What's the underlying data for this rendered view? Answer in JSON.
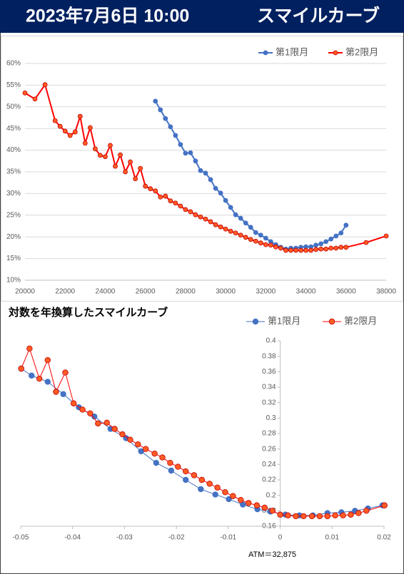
{
  "header": {
    "date": "2023年7月6日 10:00",
    "title": "スマイルカーブ"
  },
  "chart_data": [
    {
      "type": "line",
      "xlim": [
        20000,
        38000
      ],
      "xticks": [
        20000,
        22000,
        24000,
        26000,
        28000,
        30000,
        32000,
        34000,
        36000,
        38000
      ],
      "ylim": [
        10,
        60
      ],
      "yticks": [
        {
          "value": 10,
          "label": "10%"
        },
        {
          "value": 15,
          "label": "15%"
        },
        {
          "value": 20,
          "label": "20%"
        },
        {
          "value": 25,
          "label": "25%"
        },
        {
          "value": 30,
          "label": "30%"
        },
        {
          "value": 35,
          "label": "35%"
        },
        {
          "value": 40,
          "label": "40%"
        },
        {
          "value": 45,
          "label": "45%"
        },
        {
          "value": 50,
          "label": "50%"
        },
        {
          "value": 55,
          "label": "55%"
        },
        {
          "value": 60,
          "label": "60%"
        }
      ],
      "grid": true,
      "legend": "top-right",
      "series": [
        {
          "name": "第1限月",
          "color": "#4472c4",
          "marker_color": "#4472c4",
          "x": [
            26500,
            26750,
            27000,
            27250,
            27500,
            27750,
            28000,
            28250,
            28500,
            28750,
            29000,
            29250,
            29500,
            29750,
            30000,
            30250,
            30500,
            30750,
            31000,
            31250,
            31500,
            31750,
            32000,
            32250,
            32500,
            32750,
            33000,
            33250,
            33500,
            33750,
            34000,
            34250,
            34500,
            34750,
            35000,
            35250,
            35500,
            35750,
            36000
          ],
          "values": [
            51.3,
            49.3,
            47.3,
            45.4,
            43.4,
            41.3,
            39.3,
            39.4,
            37.5,
            35.3,
            34.7,
            33.2,
            31.2,
            30.1,
            28.4,
            26.8,
            25.1,
            24.3,
            23.2,
            22.2,
            21.0,
            20.4,
            19.7,
            18.9,
            18.2,
            17.6,
            17.2,
            17.4,
            17.4,
            17.6,
            17.7,
            17.7,
            18.1,
            18.4,
            18.9,
            19.5,
            20.2,
            20.9,
            22.7
          ]
        },
        {
          "name": "第2限月",
          "color": "#ff0000",
          "marker_color": "#ff5b25",
          "x": [
            20000,
            20500,
            21000,
            21500,
            21750,
            22000,
            22250,
            22500,
            22750,
            23000,
            23250,
            23500,
            23750,
            24000,
            24250,
            24500,
            24750,
            25000,
            25250,
            25500,
            25750,
            26000,
            26250,
            26500,
            26750,
            27000,
            27250,
            27500,
            27750,
            28000,
            28250,
            28500,
            28750,
            29000,
            29250,
            29500,
            29750,
            30000,
            30250,
            30500,
            30750,
            31000,
            31250,
            31500,
            31750,
            32000,
            32250,
            32500,
            32750,
            33000,
            33250,
            33500,
            33750,
            34000,
            34250,
            34500,
            34750,
            35000,
            35250,
            35500,
            35750,
            36000,
            37000,
            38000
          ],
          "values": [
            53.2,
            51.8,
            55.1,
            46.8,
            45.5,
            44.4,
            43.4,
            44.2,
            47.8,
            41.6,
            45.2,
            40.3,
            38.8,
            38.5,
            41.1,
            36.3,
            38.9,
            35.0,
            37.3,
            33.4,
            35.8,
            31.7,
            31.1,
            30.6,
            29.2,
            29.4,
            28.3,
            27.8,
            27.1,
            26.3,
            25.8,
            25.1,
            24.6,
            24.1,
            23.5,
            22.8,
            22.3,
            21.8,
            21.3,
            20.9,
            20.4,
            19.9,
            19.4,
            19.0,
            18.6,
            18.2,
            18.1,
            17.7,
            17.4,
            16.9,
            16.9,
            16.9,
            16.9,
            16.9,
            16.9,
            17.1,
            17.2,
            17.2,
            17.4,
            17.4,
            17.6,
            17.6,
            18.7,
            20.2
          ]
        }
      ]
    },
    {
      "type": "line",
      "title": "対数を年換算したスマイルカーブ",
      "annotation": "ATM＝32,875",
      "xlim": [
        -0.05,
        0.02
      ],
      "xticks": [
        -0.05,
        -0.04,
        -0.03,
        -0.02,
        -0.01,
        0,
        0.01,
        0.02
      ],
      "ylim": [
        0.16,
        0.4
      ],
      "yticks": [
        0.16,
        0.18,
        0.2,
        0.22,
        0.24,
        0.26,
        0.28,
        0.3,
        0.32,
        0.34,
        0.36,
        0.38,
        0.4
      ],
      "grid": false,
      "legend": "top-right",
      "series": [
        {
          "name": "第1限月",
          "color": "#4472c4",
          "marker_color": "#4472c4",
          "x": [
            -0.0499,
            -0.0479,
            -0.0448,
            -0.0418,
            -0.0388,
            -0.0358,
            -0.0327,
            -0.0297,
            -0.0268,
            -0.0239,
            -0.021,
            -0.0182,
            -0.0153,
            -0.0125,
            -0.0099,
            -0.0072,
            -0.0044,
            -0.0019,
            0.001,
            0.0037,
            0.0063,
            0.0091,
            0.0118,
            0.0144,
            0.0169,
            0.0197
          ],
          "values": [
            0.364,
            0.355,
            0.347,
            0.331,
            0.314,
            0.302,
            0.286,
            0.274,
            0.257,
            0.242,
            0.232,
            0.22,
            0.208,
            0.201,
            0.195,
            0.188,
            0.182,
            0.179,
            0.175,
            0.174,
            0.174,
            0.177,
            0.178,
            0.18,
            0.183,
            0.187
          ]
        },
        {
          "name": "第2限月",
          "color": "#ff0000",
          "marker_color": "#ff5b25",
          "x": [
            -0.0499,
            -0.0483,
            -0.0464,
            -0.0448,
            -0.0432,
            -0.0414,
            -0.0398,
            -0.0381,
            -0.0366,
            -0.0351,
            -0.0334,
            -0.0319,
            -0.0304,
            -0.0289,
            -0.0274,
            -0.0259,
            -0.0242,
            -0.0227,
            -0.0212,
            -0.0197,
            -0.0182,
            -0.0166,
            -0.0151,
            -0.0136,
            -0.0121,
            -0.0106,
            -0.0091,
            -0.0076,
            -0.0061,
            -0.0045,
            -0.003,
            -0.0015,
            0,
            0.0015,
            0.003,
            0.0045,
            0.0061,
            0.0076,
            0.0091,
            0.0106,
            0.0121,
            0.0136,
            0.0151,
            0.0166,
            0.0201
          ],
          "values": [
            0.364,
            0.39,
            0.351,
            0.375,
            0.334,
            0.359,
            0.319,
            0.311,
            0.306,
            0.293,
            0.294,
            0.286,
            0.279,
            0.272,
            0.266,
            0.26,
            0.254,
            0.249,
            0.242,
            0.237,
            0.231,
            0.226,
            0.22,
            0.215,
            0.21,
            0.204,
            0.199,
            0.194,
            0.19,
            0.187,
            0.184,
            0.18,
            0.175,
            0.174,
            0.173,
            0.173,
            0.173,
            0.173,
            0.173,
            0.174,
            0.174,
            0.175,
            0.177,
            0.18,
            0.187
          ]
        }
      ]
    }
  ]
}
